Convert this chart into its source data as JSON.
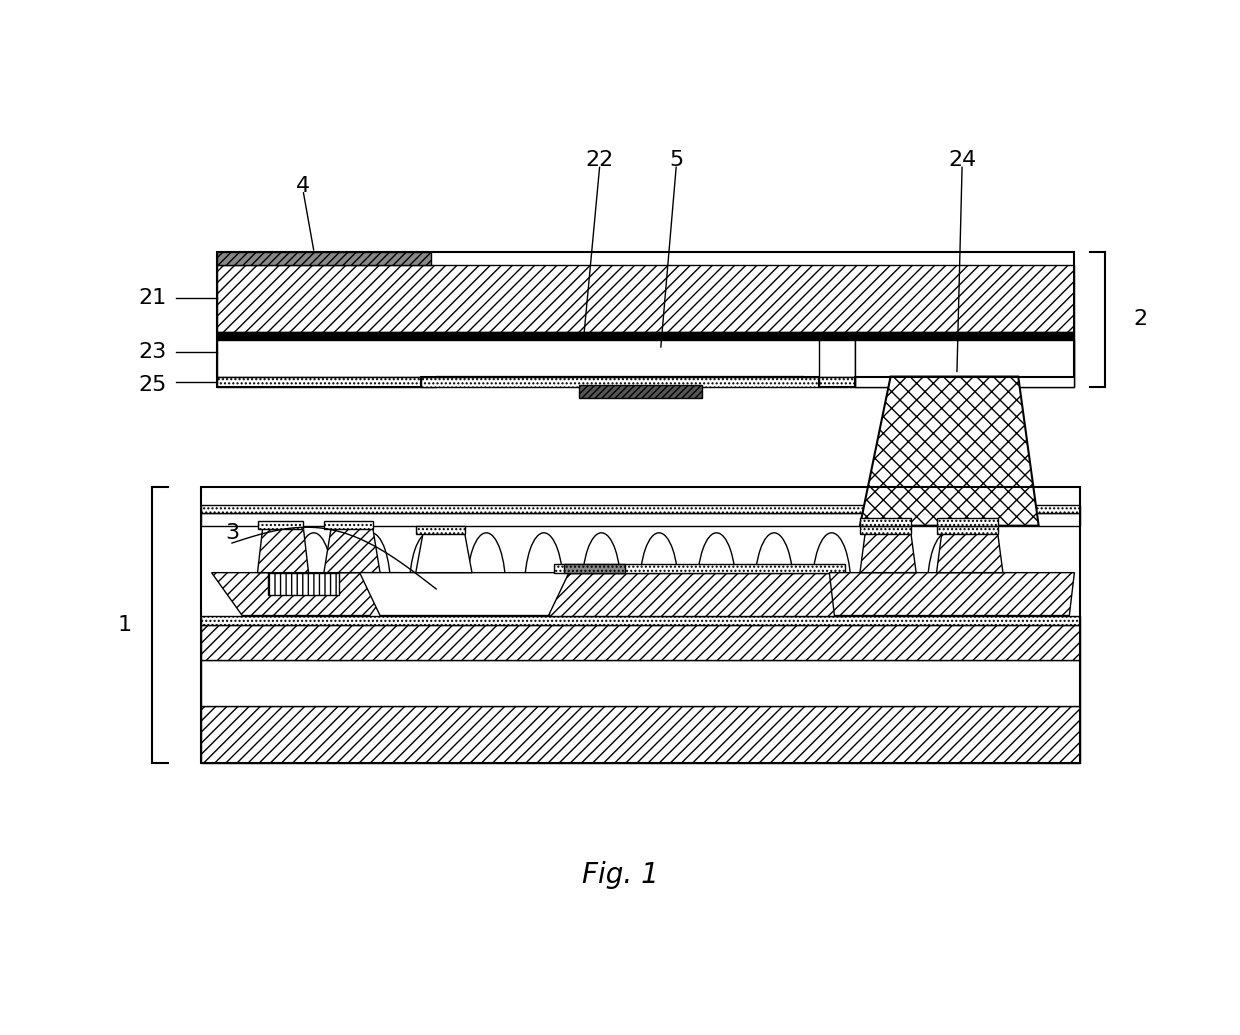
{
  "title": "Fig. 1",
  "bg_color": "#ffffff",
  "line_color": "#000000",
  "label_fontsize": 16,
  "title_fontsize": 20,
  "fig_width": 12.4,
  "fig_height": 10.35,
  "dpi": 100
}
